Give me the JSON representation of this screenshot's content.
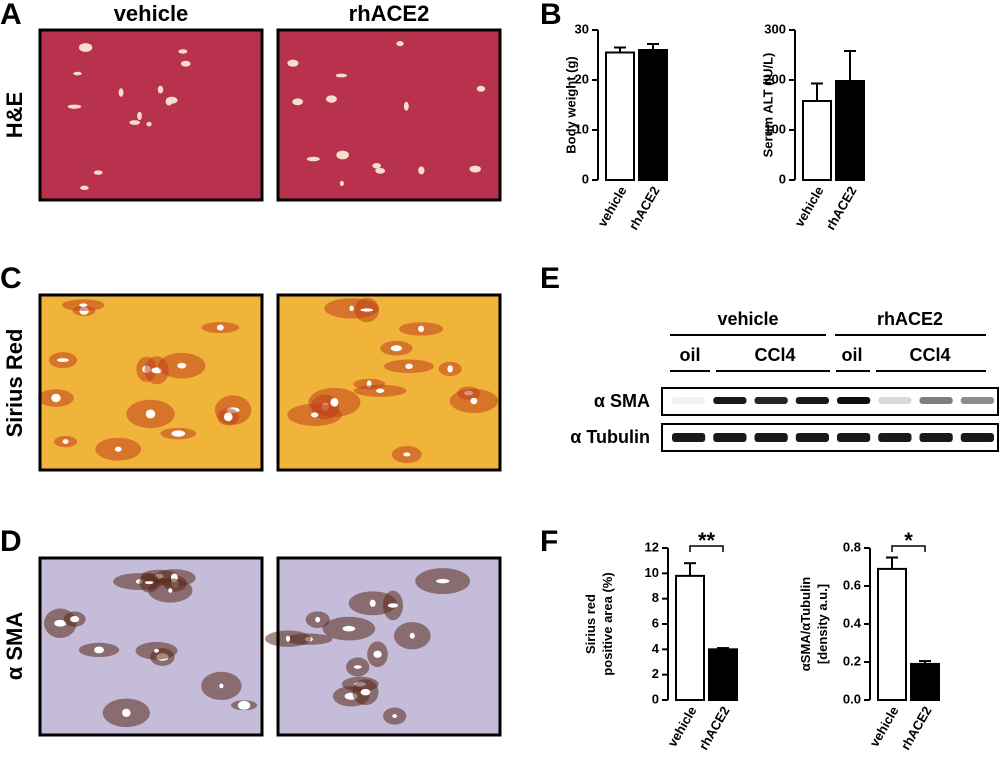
{
  "panels": [
    "A",
    "B",
    "C",
    "D",
    "E",
    "F"
  ],
  "micrographs": {
    "columns": [
      "vehicle",
      "rhACE2"
    ],
    "rows": [
      "H&E",
      "Sirius Red",
      "α SMA"
    ]
  },
  "blot": {
    "groups": [
      "vehicle",
      "rhACE2"
    ],
    "treatments": [
      "oil",
      "CCl4",
      "oil",
      "CCl4"
    ],
    "rows": [
      "α SMA",
      "α Tubulin"
    ]
  },
  "chart_data": [
    {
      "type": "bar",
      "ylabel": "Body weight (g)",
      "categories": [
        "vehicle",
        "rhACE2"
      ],
      "values": [
        25.5,
        26
      ],
      "errors": [
        1,
        1.2
      ],
      "colors": [
        "#ffffff",
        "#000000"
      ],
      "ylim": [
        0,
        30
      ],
      "yticks": [
        0,
        10,
        20,
        30
      ]
    },
    {
      "type": "bar",
      "ylabel": "Serum ALT (IU/L)",
      "categories": [
        "vehicle",
        "rhACE2"
      ],
      "values": [
        158,
        198
      ],
      "errors": [
        35,
        60
      ],
      "colors": [
        "#ffffff",
        "#000000"
      ],
      "ylim": [
        0,
        300
      ],
      "yticks": [
        0,
        100,
        200,
        300
      ]
    },
    {
      "type": "bar",
      "ylabel": [
        "Sirius red",
        "positive area (%)"
      ],
      "categories": [
        "vehicle",
        "rhACE2"
      ],
      "values": [
        9.8,
        4.0
      ],
      "errors": [
        1.0,
        0.1
      ],
      "colors": [
        "#ffffff",
        "#000000"
      ],
      "ylim": [
        0,
        12
      ],
      "yticks": [
        0,
        2,
        4,
        6,
        8,
        10,
        12
      ],
      "annotation": "**"
    },
    {
      "type": "bar",
      "ylabel": [
        "αSMA/αTubulin",
        "[density a.u.]"
      ],
      "categories": [
        "vehicle",
        "rhACE2"
      ],
      "values": [
        0.69,
        0.19
      ],
      "errors": [
        0.06,
        0.015
      ],
      "colors": [
        "#ffffff",
        "#000000"
      ],
      "ylim": [
        0,
        0.8
      ],
      "yticks": [
        {
          "value": 0,
          "label": "0.0"
        },
        0.2,
        0.4,
        0.6,
        0.8
      ],
      "annotation": "*"
    }
  ]
}
